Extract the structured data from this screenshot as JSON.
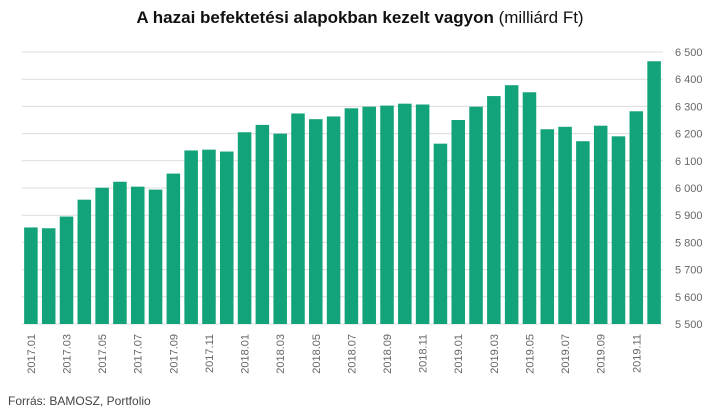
{
  "title": {
    "bold": "A hazai befektetési alapokban kezelt vagyon",
    "unit": "(milliárd Ft)"
  },
  "source": "Forrás: BAMOSZ,  Portfolio",
  "colors": {
    "bar": "#13a37a",
    "grid": "#dcdcdc",
    "tick_text": "#666666"
  },
  "chart_data": {
    "type": "bar",
    "title": "A hazai befektetési alapokban kezelt vagyon (milliárd Ft)",
    "xlabel": "",
    "ylabel": "",
    "ylim": [
      5500,
      6500
    ],
    "y_ticks": [
      5500,
      5600,
      5700,
      5800,
      5900,
      6000,
      6100,
      6200,
      6300,
      6400,
      6500
    ],
    "y_tick_labels": [
      "5 500",
      "5 600",
      "5 700",
      "5 800",
      "5 900",
      "6 000",
      "6 100",
      "6 200",
      "6 300",
      "6 400",
      "6 500"
    ],
    "y_axis_position": "right",
    "grid": true,
    "legend": "none",
    "categories": [
      "2017.01",
      "2017.02",
      "2017.03",
      "2017.04",
      "2017.05",
      "2017.06",
      "2017.07",
      "2017.08",
      "2017.09",
      "2017.10",
      "2017.11",
      "2017.12",
      "2018.01",
      "2018.02",
      "2018.03",
      "2018.04",
      "2018.05",
      "2018.06",
      "2018.07",
      "2018.08",
      "2018.09",
      "2018.10",
      "2018.11",
      "2018.12",
      "2019.01",
      "2019.02",
      "2019.03",
      "2019.04",
      "2019.05",
      "2019.06",
      "2019.07",
      "2019.08",
      "2019.09",
      "2019.10",
      "2019.11",
      "2019.12"
    ],
    "x_tick_labels": [
      "2017.01",
      "",
      "2017.03",
      "",
      "2017.05",
      "",
      "2017.07",
      "",
      "2017.09",
      "",
      "2017.11",
      "",
      "2018.01",
      "",
      "2018.03",
      "",
      "2018.05",
      "",
      "2018.07",
      "",
      "2018.09",
      "",
      "2018.11",
      "",
      "2019.01",
      "",
      "2019.03",
      "",
      "2019.05",
      "",
      "2019.07",
      "",
      "2019.09",
      "",
      "2019.11",
      ""
    ],
    "values": [
      5855,
      5852,
      5895,
      5957,
      6001,
      6023,
      6005,
      5994,
      6053,
      6138,
      6141,
      6134,
      6205,
      6232,
      6200,
      6274,
      6253,
      6263,
      6293,
      6299,
      6303,
      6310,
      6307,
      6163,
      6250,
      6299,
      6338,
      6378,
      6352,
      6216,
      6225,
      6172,
      6229,
      6190,
      6282,
      6466
    ]
  }
}
